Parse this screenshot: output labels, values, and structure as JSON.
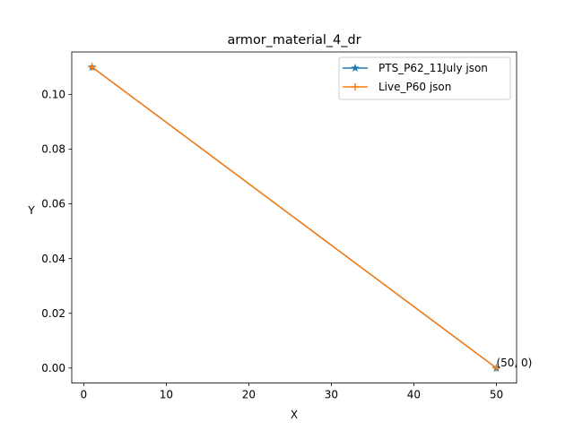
{
  "chart_data": {
    "type": "line",
    "title": "armor_material_4_dr",
    "xlabel": "X",
    "ylabel": "Y",
    "xlim": [
      -1.45,
      52.45
    ],
    "ylim": [
      -0.0055,
      0.1155
    ],
    "xticks": [
      0,
      10,
      20,
      30,
      40,
      50
    ],
    "yticks": [
      0.0,
      0.02,
      0.04,
      0.06,
      0.08,
      0.1
    ],
    "xtick_labels": [
      "0",
      "10",
      "20",
      "30",
      "40",
      "50"
    ],
    "ytick_labels": [
      "0.00",
      "0.02",
      "0.04",
      "0.06",
      "0.08",
      "0.10"
    ],
    "grid": false,
    "legend_position": "top-right",
    "series": [
      {
        "name": "PTS_P62_11July json",
        "x": [
          1,
          50
        ],
        "y": [
          0.11,
          0
        ],
        "color": "#1f77b4",
        "marker": "star"
      },
      {
        "name": "Live_P60 json",
        "x": [
          1,
          50
        ],
        "y": [
          0.11,
          0
        ],
        "color": "#ff7f0e",
        "marker": "plus"
      }
    ],
    "annotations": [
      {
        "text": "(50, 0)",
        "x": 50,
        "y": 0
      }
    ]
  }
}
